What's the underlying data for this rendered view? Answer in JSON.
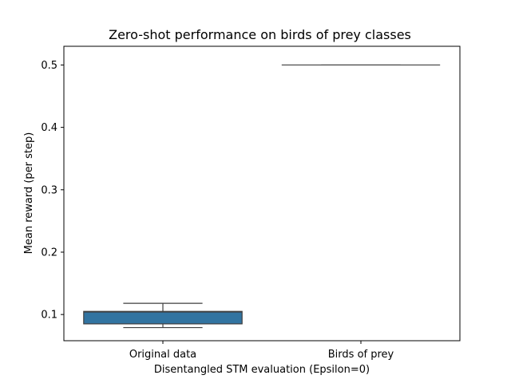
{
  "chart_data": {
    "type": "box",
    "title": "Zero-shot performance on birds of prey classes",
    "xlabel": "Disentangled STM evaluation (Epsilon=0)",
    "ylabel": "Mean reward (per step)",
    "ylim": [
      0.058,
      0.53
    ],
    "yticks": [
      0.1,
      0.2,
      0.3,
      0.4,
      0.5
    ],
    "categories": [
      "Original data",
      "Birds of prey"
    ],
    "boxes": [
      {
        "category": "Original data",
        "whisker_low": 0.079,
        "q1": 0.085,
        "median": 0.104,
        "q3": 0.105,
        "whisker_high": 0.118
      },
      {
        "category": "Birds of prey",
        "whisker_low": 0.5,
        "q1": 0.5,
        "median": 0.5,
        "q3": 0.5,
        "whisker_high": 0.5
      }
    ],
    "box_color": "#3274a1",
    "line_color": "#3f3f3f",
    "grid": false
  }
}
